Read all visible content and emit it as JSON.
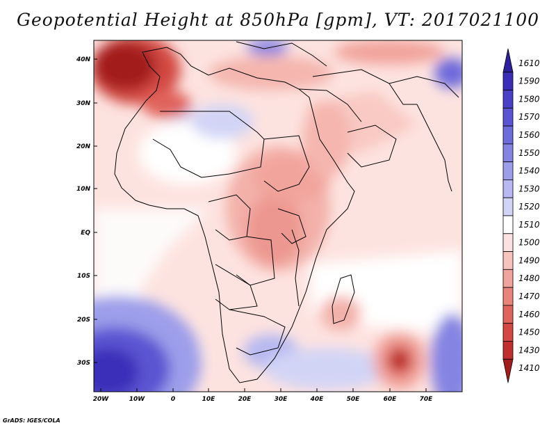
{
  "title": "Geopotential Height at 850hPa [gpm], VT: 2017021100",
  "credit": "GrADS: IGES/COLA",
  "map": {
    "lat_labels": [
      "40N",
      "30N",
      "20N",
      "10N",
      "EQ",
      "10S",
      "20S",
      "30S"
    ],
    "lon_labels": [
      "20W",
      "10W",
      "0",
      "10E",
      "20E",
      "30E",
      "40E",
      "50E",
      "60E",
      "70E"
    ]
  },
  "colorbar": {
    "levels": [
      "1610",
      "1590",
      "1580",
      "1570",
      "1560",
      "1550",
      "1540",
      "1530",
      "1520",
      "1510",
      "1500",
      "1490",
      "1480",
      "1470",
      "1460",
      "1450",
      "1430",
      "1410"
    ],
    "colors": [
      "#2c1f9c",
      "#3a2db8",
      "#4a40c8",
      "#5b54d2",
      "#6e6bdb",
      "#8584e3",
      "#9d9eea",
      "#b7b9f0",
      "#d2d4f6",
      "#ffffff",
      "#fbe2e0",
      "#f7c3bd",
      "#f1a49c",
      "#e9847b",
      "#e0645b",
      "#d34843",
      "#c02e2e",
      "#a31c1c"
    ]
  }
}
